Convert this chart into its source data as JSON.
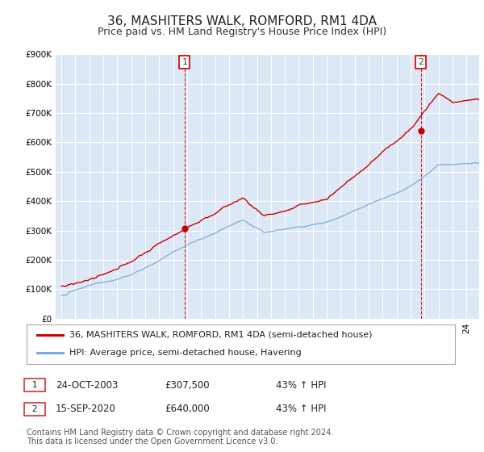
{
  "title": "36, MASHITERS WALK, ROMFORD, RM1 4DA",
  "subtitle": "Price paid vs. HM Land Registry's House Price Index (HPI)",
  "ylim": [
    0,
    900000
  ],
  "yticks": [
    0,
    100000,
    200000,
    300000,
    400000,
    500000,
    600000,
    700000,
    800000,
    900000
  ],
  "ytick_labels": [
    "£0",
    "£100K",
    "£200K",
    "£300K",
    "£400K",
    "£500K",
    "£600K",
    "£700K",
    "£800K",
    "£900K"
  ],
  "background_color": "#ffffff",
  "plot_bg_color": "#dce8f5",
  "grid_color": "#ffffff",
  "red_line_color": "#cc0000",
  "blue_line_color": "#7aaddb",
  "purchase1_year": 2003.82,
  "purchase1_price": 307500,
  "purchase1_label": "1",
  "purchase2_year": 2020.72,
  "purchase2_price": 640000,
  "purchase2_label": "2",
  "legend_red_label": "36, MASHITERS WALK, ROMFORD, RM1 4DA (semi-detached house)",
  "legend_blue_label": "HPI: Average price, semi-detached house, Havering",
  "annotation1_date": "24-OCT-2003",
  "annotation1_price": "£307,500",
  "annotation1_hpi": "43% ↑ HPI",
  "annotation2_date": "15-SEP-2020",
  "annotation2_price": "£640,000",
  "annotation2_hpi": "43% ↑ HPI",
  "footer": "Contains HM Land Registry data © Crown copyright and database right 2024.\nThis data is licensed under the Open Government Licence v3.0.",
  "title_fontsize": 11,
  "subtitle_fontsize": 9,
  "tick_fontsize": 7.5,
  "legend_fontsize": 8,
  "annotation_fontsize": 8.5,
  "footer_fontsize": 7
}
